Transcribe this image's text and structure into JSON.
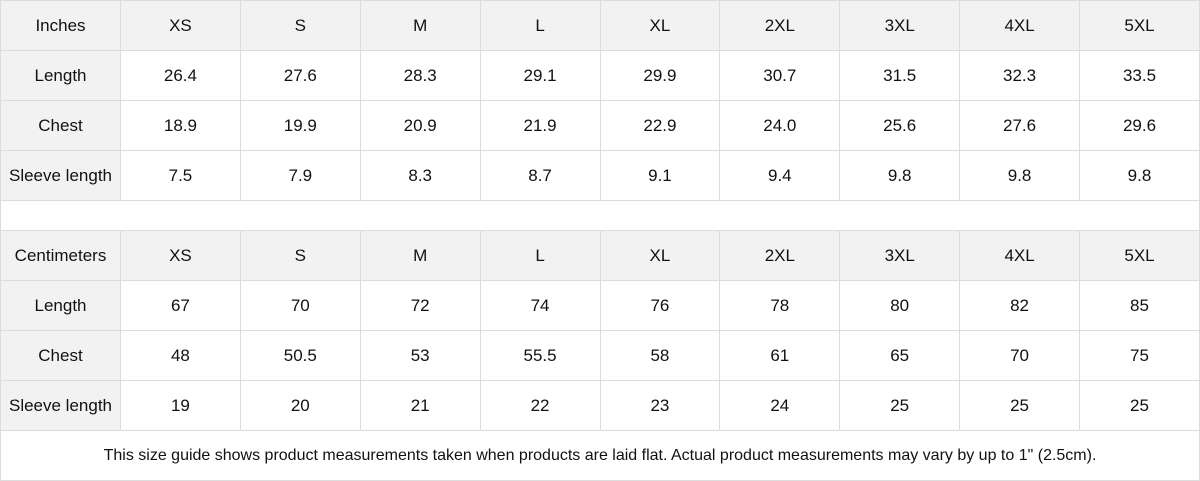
{
  "tables": [
    {
      "header": [
        "Inches",
        "XS",
        "S",
        "M",
        "L",
        "XL",
        "2XL",
        "3XL",
        "4XL",
        "5XL"
      ],
      "rows": [
        [
          "Length",
          "26.4",
          "27.6",
          "28.3",
          "29.1",
          "29.9",
          "30.7",
          "31.5",
          "32.3",
          "33.5"
        ],
        [
          "Chest",
          "18.9",
          "19.9",
          "20.9",
          "21.9",
          "22.9",
          "24.0",
          "25.6",
          "27.6",
          "29.6"
        ],
        [
          "Sleeve length",
          "7.5",
          "7.9",
          "8.3",
          "8.7",
          "9.1",
          "9.4",
          "9.8",
          "9.8",
          "9.8"
        ]
      ]
    },
    {
      "header": [
        "Centimeters",
        "XS",
        "S",
        "M",
        "L",
        "XL",
        "2XL",
        "3XL",
        "4XL",
        "5XL"
      ],
      "rows": [
        [
          "Length",
          "67",
          "70",
          "72",
          "74",
          "76",
          "78",
          "80",
          "82",
          "85"
        ],
        [
          "Chest",
          "48",
          "50.5",
          "53",
          "55.5",
          "58",
          "61",
          "65",
          "70",
          "75"
        ],
        [
          "Sleeve length",
          "19",
          "20",
          "21",
          "22",
          "23",
          "24",
          "25",
          "25",
          "25"
        ]
      ]
    }
  ],
  "footnote": "This size guide shows product measurements taken when products are laid flat.  Actual product measurements may vary by up to 1\" (2.5cm).",
  "colors": {
    "header_bg": "#f2f2f2",
    "border": "#dcdcdc"
  }
}
